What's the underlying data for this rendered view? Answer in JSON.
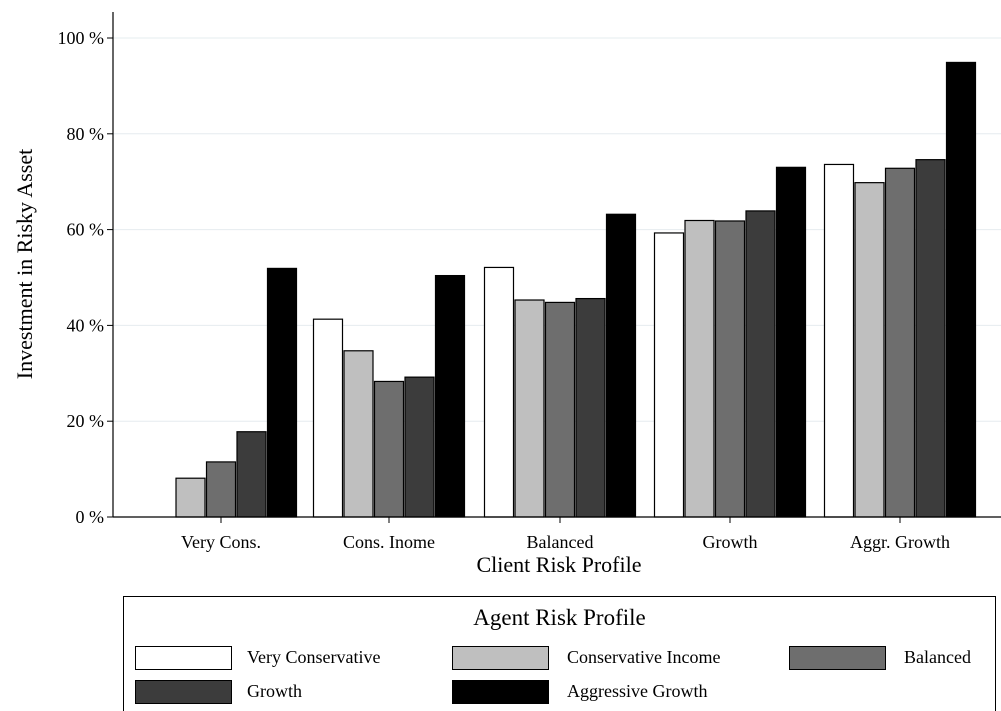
{
  "chart_data": {
    "type": "bar",
    "categories": [
      "Very Cons.",
      "Cons. Inome",
      "Balanced",
      "Growth",
      "Aggr. Growth"
    ],
    "series": [
      {
        "name": "Very Conservative",
        "color": "#ffffff",
        "values": [
          0,
          41.3,
          52.1,
          59.3,
          73.6
        ]
      },
      {
        "name": "Conservative Income",
        "color": "#bfbfbf",
        "values": [
          8.1,
          34.7,
          45.3,
          61.9,
          69.8
        ]
      },
      {
        "name": "Balanced",
        "color": "#6e6e6e",
        "values": [
          11.5,
          28.3,
          44.8,
          61.8,
          72.8
        ]
      },
      {
        "name": "Growth",
        "color": "#3c3c3c",
        "values": [
          17.8,
          29.2,
          45.6,
          63.9,
          74.6
        ]
      },
      {
        "name": "Aggressive Growth",
        "color": "#000000",
        "values": [
          51.9,
          50.4,
          63.2,
          73.0,
          94.9
        ]
      }
    ],
    "xlabel": "Client Risk Profile",
    "ylabel": "Investment in Risky Asset",
    "ylim": [
      0,
      100
    ],
    "yticks": [
      0,
      20,
      40,
      60,
      80,
      100
    ],
    "ytick_labels": [
      "0 %",
      "20 %",
      "40 %",
      "60 %",
      "80 %",
      "100 %"
    ],
    "grid": "horizontal",
    "legend": {
      "title": "Agent Risk Profile",
      "placement": "bottom"
    }
  }
}
